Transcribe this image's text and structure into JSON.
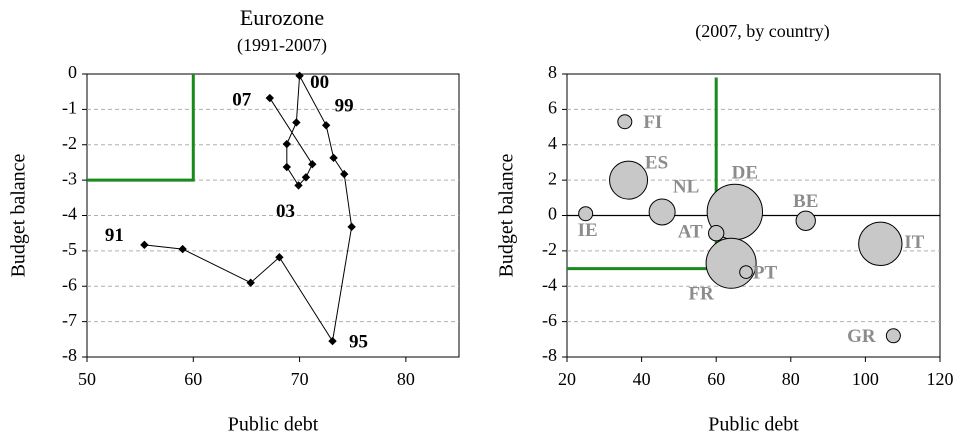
{
  "chart_data": [
    {
      "type": "line",
      "title": "Eurozone",
      "subtitle": "(1991-2007)",
      "xlabel": "Public debt",
      "ylabel": "Budget balance",
      "xlim": [
        50,
        85
      ],
      "ylim": [
        -8,
        0
      ],
      "xticks": [
        50,
        60,
        70,
        80
      ],
      "yticks": [
        0,
        -1,
        -2,
        -3,
        -4,
        -5,
        -6,
        -7,
        -8
      ],
      "grid": "horizontal dashed",
      "series": [
        {
          "marker": "diamond",
          "color": "#000000",
          "points": [
            {
              "x": 55.4,
              "y": -4.83
            },
            {
              "x": 59.0,
              "y": -4.95
            },
            {
              "x": 65.4,
              "y": -5.9
            },
            {
              "x": 68.1,
              "y": -5.18
            },
            {
              "x": 73.1,
              "y": -7.55
            },
            {
              "x": 74.9,
              "y": -4.32
            },
            {
              "x": 74.2,
              "y": -2.83
            },
            {
              "x": 73.2,
              "y": -2.37
            },
            {
              "x": 72.5,
              "y": -1.45
            },
            {
              "x": 70.0,
              "y": -0.05
            },
            {
              "x": 69.7,
              "y": -1.37
            },
            {
              "x": 68.8,
              "y": -1.98
            },
            {
              "x": 68.8,
              "y": -2.63
            },
            {
              "x": 69.9,
              "y": -3.15
            },
            {
              "x": 70.6,
              "y": -2.92
            },
            {
              "x": 71.2,
              "y": -2.55
            },
            {
              "x": 67.2,
              "y": -0.68
            }
          ]
        }
      ],
      "annotations": [
        {
          "text": "91",
          "x": 55.4,
          "y": -4.83
        },
        {
          "text": "95",
          "x": 73.1,
          "y": -7.55
        },
        {
          "text": "99",
          "x": 72.5,
          "y": -1.45
        },
        {
          "text": "00",
          "x": 70.0,
          "y": -0.05
        },
        {
          "text": "03",
          "x": 69.9,
          "y": -3.15
        },
        {
          "text": "07",
          "x": 67.2,
          "y": -0.68
        }
      ],
      "reference_lines": [
        {
          "color": "#1a8a1a",
          "points": [
            {
              "x": 50,
              "y": -3
            },
            {
              "x": 60,
              "y": -3
            },
            {
              "x": 60,
              "y": 0
            }
          ]
        }
      ]
    },
    {
      "type": "scatter",
      "title": "",
      "subtitle": "(2007, by country)",
      "xlabel": "Public debt",
      "ylabel": "Budget balance",
      "xlim": [
        20,
        120
      ],
      "ylim": [
        -8,
        8
      ],
      "xticks": [
        20,
        40,
        60,
        80,
        100,
        120
      ],
      "yticks": [
        8,
        6,
        4,
        2,
        0,
        -2,
        -4,
        -6,
        -8
      ],
      "grid": "horizontal dashed",
      "bubble_color": "#c8c8c8",
      "points": [
        {
          "label": "FI",
          "x": 35.5,
          "y": 5.3,
          "r": 0.9
        },
        {
          "label": "ES",
          "x": 36.5,
          "y": 2.0,
          "r": 2.7
        },
        {
          "label": "NL",
          "x": 45.5,
          "y": 0.2,
          "r": 1.8
        },
        {
          "label": "IE",
          "x": 25.0,
          "y": 0.1,
          "r": 0.9
        },
        {
          "label": "DE",
          "x": 65.0,
          "y": 0.2,
          "r": 4.0
        },
        {
          "label": "BE",
          "x": 84.0,
          "y": -0.3,
          "r": 1.3
        },
        {
          "label": "AT",
          "x": 60.0,
          "y": -1.0,
          "r": 1.0
        },
        {
          "label": "IT",
          "x": 104.0,
          "y": -1.6,
          "r": 3.1
        },
        {
          "label": "FR",
          "x": 64.0,
          "y": -2.7,
          "r": 3.6
        },
        {
          "label": "PT",
          "x": 68.0,
          "y": -3.2,
          "r": 0.8
        },
        {
          "label": "GR",
          "x": 107.5,
          "y": -6.8,
          "r": 0.9
        }
      ],
      "reference_lines": [
        {
          "color": "#1a8a1a",
          "points": [
            {
              "x": 20,
              "y": -3
            },
            {
              "x": 60,
              "y": -3
            },
            {
              "x": 60,
              "y": 7.8
            }
          ]
        }
      ]
    }
  ]
}
